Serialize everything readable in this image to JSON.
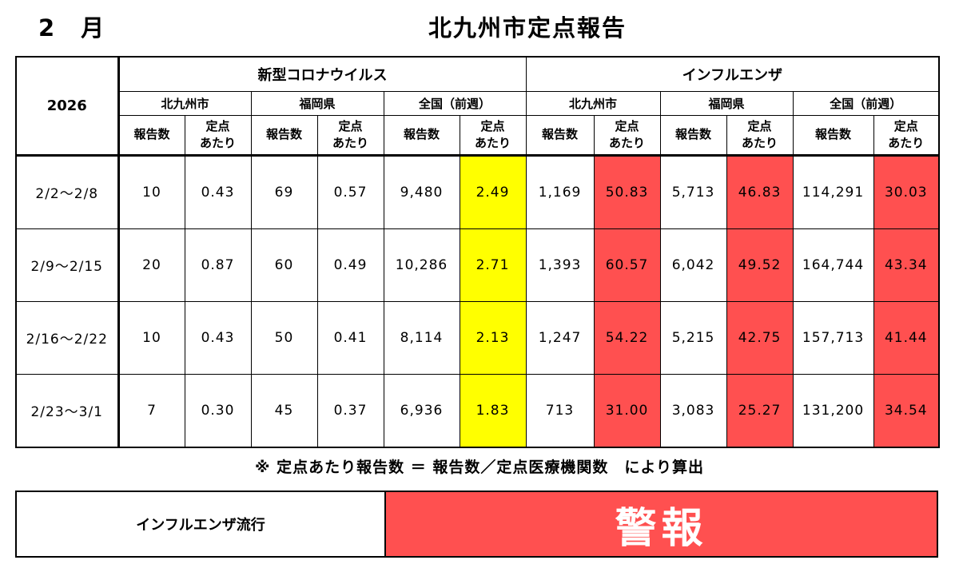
{
  "header": {
    "month": "2　月",
    "title": "北九州市定点報告"
  },
  "table": {
    "year": "2026",
    "groups": [
      "新型コロナウイルス",
      "インフルエンザ"
    ],
    "regions": [
      "北九州市",
      "福岡県",
      "全国（前週）",
      "北九州市",
      "福岡県",
      "全国（前週）"
    ],
    "col_count": "報告数",
    "col_per_site_1": "定点",
    "col_per_site_2": "あたり",
    "rows": [
      {
        "period": "2/2～2/8",
        "values": [
          "10",
          "0.43",
          "69",
          "0.57",
          "9,480",
          "2.49",
          "1,169",
          "50.83",
          "5,713",
          "46.83",
          "114,291",
          "30.03"
        ]
      },
      {
        "period": "2/9～2/15",
        "values": [
          "20",
          "0.87",
          "60",
          "0.49",
          "10,286",
          "2.71",
          "1,393",
          "60.57",
          "6,042",
          "49.52",
          "164,744",
          "43.34"
        ]
      },
      {
        "period": "2/16～2/22",
        "values": [
          "10",
          "0.43",
          "50",
          "0.41",
          "8,114",
          "2.13",
          "1,247",
          "54.22",
          "5,215",
          "42.75",
          "157,713",
          "41.44"
        ]
      },
      {
        "period": "2/23～3/1",
        "values": [
          "7",
          "0.30",
          "45",
          "0.37",
          "6,936",
          "1.83",
          "713",
          "31.00",
          "3,083",
          "25.27",
          "131,200",
          "34.54"
        ]
      }
    ]
  },
  "note": "※ 定点あたり報告数 ＝ 報告数／定点医療機関数　により算出",
  "status": {
    "label": "インフルエンザ流行",
    "value": "警報"
  },
  "colors": {
    "highlight_yellow": "#ffff00",
    "highlight_red": "#ff5050"
  }
}
